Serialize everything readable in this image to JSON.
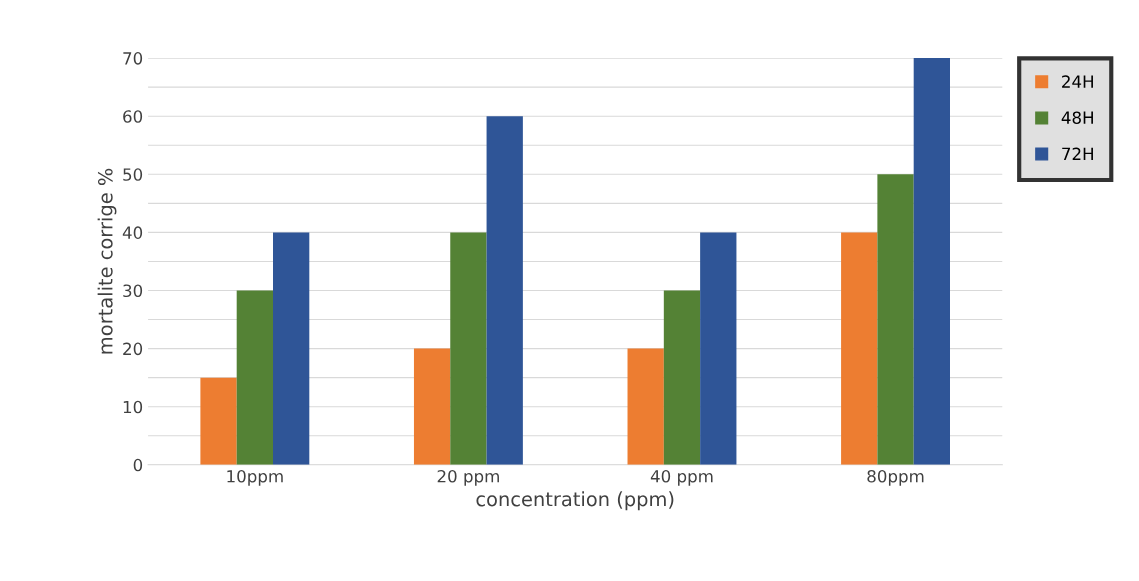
{
  "chart_data": {
    "type": "bar",
    "xlabel": "concentration (ppm)",
    "ylabel": "mortalite corrige %",
    "categories": [
      "10ppm",
      "20 ppm",
      "40 ppm",
      "80ppm"
    ],
    "series": [
      {
        "name": "24H",
        "color": "#ed7d31",
        "values": [
          15,
          20,
          20,
          40
        ]
      },
      {
        "name": "48H",
        "color": "#548235",
        "values": [
          30,
          40,
          30,
          50
        ]
      },
      {
        "name": "72H",
        "color": "#2f5597",
        "values": [
          40,
          60,
          40,
          70
        ]
      }
    ],
    "ylim": [
      0,
      70
    ],
    "yticks": [
      0,
      {
        "value": 5,
        "label": null
      },
      10,
      {
        "value": 15,
        "label": null
      },
      20,
      {
        "value": 25,
        "label": null
      },
      30,
      {
        "value": 35,
        "label": null
      },
      40,
      {
        "value": 45,
        "label": null
      },
      50,
      {
        "value": 55,
        "label": null
      },
      60,
      {
        "value": 65,
        "label": null
      },
      70
    ],
    "grid": "y",
    "legend": "top right"
  }
}
